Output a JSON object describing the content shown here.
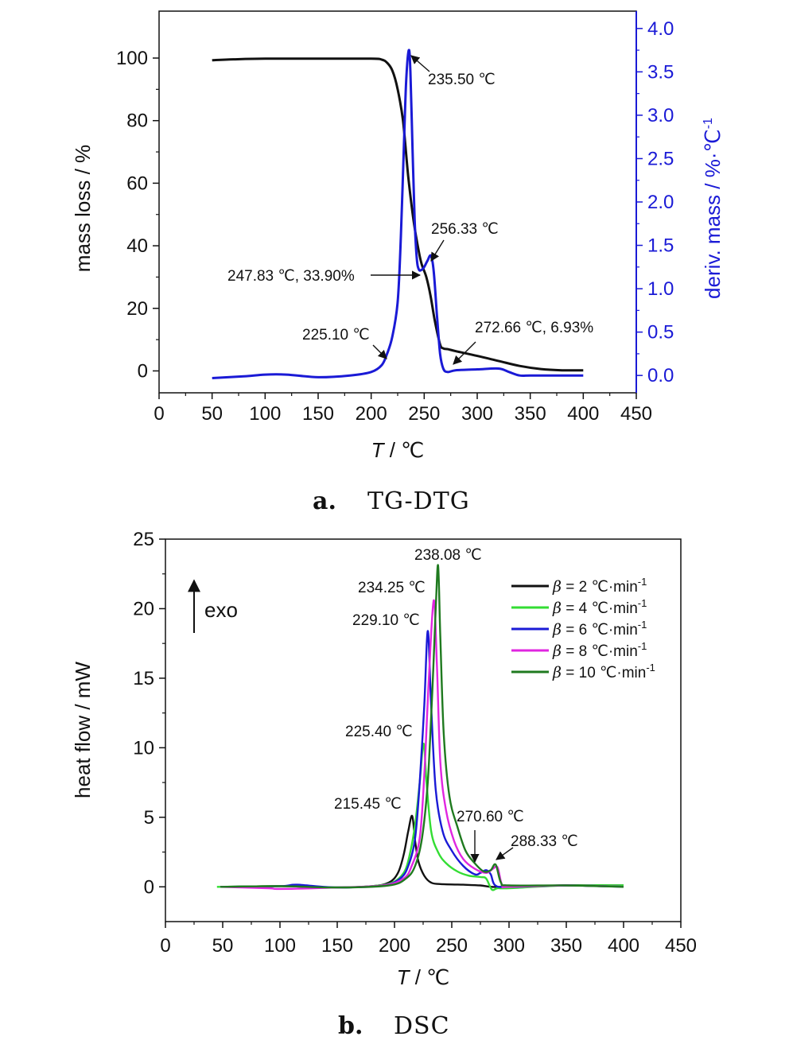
{
  "chart_data": [
    {
      "type": "line",
      "panel_letter": "a.",
      "caption": "TG-DTG",
      "xlabel_italic": "T",
      "xlabel_unit": " / ℃",
      "ylabel": "mass loss / %",
      "y2label": "deriv. mass / %·℃",
      "y2label_sup": "-1",
      "xlim": [
        0,
        450
      ],
      "ylim": [
        -7,
        115
      ],
      "y2lim": [
        -0.2,
        4.2
      ],
      "xticks": [
        "0",
        "50",
        "100",
        "150",
        "200",
        "250",
        "300",
        "350",
        "400",
        "450"
      ],
      "yticks": [
        "0",
        "20",
        "40",
        "60",
        "80",
        "100"
      ],
      "y2ticks": [
        "0.0",
        "0.5",
        "1.0",
        "1.5",
        "2.0",
        "2.5",
        "3.0",
        "3.5",
        "4.0"
      ],
      "y2_axis_color": "#1a1ad6",
      "series": [
        {
          "axis": "left",
          "color": "#111111",
          "x": [
            50,
            70,
            100,
            150,
            200,
            210,
            215,
            220,
            225,
            230,
            235,
            240,
            245,
            247.83,
            252,
            256,
            260,
            265,
            268,
            272.66,
            280,
            300,
            320,
            340,
            360,
            380,
            400
          ],
          "y": [
            99.3,
            99.6,
            99.8,
            99.8,
            99.8,
            99.5,
            98.5,
            96,
            90,
            80,
            62,
            48,
            38,
            33.9,
            30,
            24,
            16,
            8.5,
            7.2,
            6.93,
            6.3,
            4.8,
            3.2,
            1.6,
            0.6,
            0.2,
            0.2
          ]
        },
        {
          "axis": "right",
          "color": "#1a1ad6",
          "x": [
            50,
            80,
            100,
            120,
            150,
            180,
            200,
            210,
            215,
            220,
            225,
            228,
            231,
            233,
            235.5,
            237,
            239,
            241,
            243,
            245,
            247.83,
            250,
            253,
            256.33,
            259,
            262,
            265,
            268,
            272,
            280,
            300,
            320,
            330,
            340,
            350,
            370,
            400
          ],
          "y": [
            -0.03,
            -0.01,
            0.01,
            0.01,
            -0.02,
            0.0,
            0.04,
            0.12,
            0.25,
            0.45,
            0.85,
            1.6,
            2.7,
            3.4,
            3.75,
            3.5,
            2.6,
            1.8,
            1.35,
            1.22,
            1.22,
            1.25,
            1.32,
            1.38,
            1.2,
            0.7,
            0.25,
            0.08,
            0.04,
            0.06,
            0.07,
            0.08,
            0.04,
            0.0,
            0.0,
            0.0,
            0.0
          ]
        }
      ],
      "annotations": [
        {
          "text": "235.50 ℃"
        },
        {
          "text": "256.33 ℃"
        },
        {
          "text": "247.83 ℃, 33.90%"
        },
        {
          "text": "225.10 ℃"
        },
        {
          "text": "272.66 ℃, 6.93%"
        }
      ]
    },
    {
      "type": "line",
      "panel_letter": "b.",
      "caption": "DSC",
      "xlabel_italic": "T",
      "xlabel_unit": " / ℃",
      "ylabel": "heat flow / mW",
      "xlim": [
        0,
        450
      ],
      "ylim": [
        -2.5,
        25
      ],
      "xticks": [
        "0",
        "50",
        "100",
        "150",
        "200",
        "250",
        "300",
        "350",
        "400",
        "450"
      ],
      "yticks": [
        "0",
        "5",
        "10",
        "15",
        "20",
        "25"
      ],
      "exo_label": "exo",
      "legend_position": "top-right",
      "series": [
        {
          "name": "β = 2 ℃·min-1",
          "legend_prefix": "β",
          "legend_rest": " = 2 ℃·min",
          "legend_sup": "-1",
          "color": "#111111",
          "x": [
            48,
            100,
            150,
            180,
            195,
            203,
            208,
            212,
            215.45,
            218,
            221,
            226,
            232,
            240,
            260,
            275,
            285,
            300,
            350,
            400
          ],
          "y": [
            0,
            0.05,
            -0.05,
            0.05,
            0.3,
            1.0,
            2.3,
            4.0,
            5.1,
            3.3,
            1.8,
            0.8,
            0.3,
            0.2,
            0.15,
            0.1,
            0.0,
            0.0,
            0.1,
            0.1
          ]
        },
        {
          "name": "β = 4 ℃·min-1",
          "legend_prefix": "β",
          "legend_rest": " = 4 ℃·min",
          "legend_sup": "-1",
          "color": "#33dd33",
          "x": [
            45,
            100,
            150,
            180,
            198,
            208,
            213,
            218,
            222,
            225.4,
            228,
            232,
            238,
            245,
            255,
            265,
            275,
            280,
            285,
            290,
            300,
            350,
            400
          ],
          "y": [
            0,
            0.05,
            -0.05,
            0.05,
            0.3,
            1.0,
            2.2,
            4.5,
            7.5,
            10.3,
            7.5,
            4.0,
            2.5,
            1.7,
            1.1,
            0.8,
            0.7,
            0.6,
            -0.2,
            -0.1,
            -0.1,
            0.1,
            0.1
          ]
        },
        {
          "name": "β = 6 ℃·min-1",
          "legend_prefix": "β",
          "legend_rest": " = 6 ℃·min",
          "legend_sup": "-1",
          "color": "#1a1ad6",
          "x": [
            48,
            100,
            115,
            150,
            190,
            205,
            212,
            218,
            222,
            226,
            229.1,
            232,
            236,
            242,
            250,
            260,
            270,
            275,
            280,
            284,
            288,
            300,
            350,
            400
          ],
          "y": [
            0,
            0.05,
            0.15,
            -0.05,
            0.1,
            0.6,
            1.5,
            3.5,
            7.5,
            13,
            18.4,
            13,
            7.0,
            4.0,
            2.6,
            1.5,
            0.9,
            1.0,
            1.2,
            0.9,
            0.1,
            0.0,
            0.1,
            0.0
          ]
        },
        {
          "name": "β = 8 ℃·min-1",
          "legend_prefix": "β",
          "legend_rest": " = 8 ℃·min",
          "legend_sup": "-1",
          "color": "#e026e0",
          "x": [
            48,
            90,
            100,
            150,
            190,
            208,
            215,
            222,
            226,
            230,
            234.25,
            237,
            240,
            245,
            252,
            260,
            270,
            280,
            286,
            290,
            294,
            300,
            350,
            400
          ],
          "y": [
            0,
            -0.1,
            -0.15,
            -0.05,
            0.1,
            0.6,
            1.5,
            3.5,
            8.0,
            15,
            20.6,
            16,
            9.0,
            5.5,
            3.3,
            2.0,
            1.3,
            1.0,
            1.3,
            1.4,
            0.1,
            0.0,
            0.1,
            0.0
          ]
        },
        {
          "name": "β = 10 ℃·min-1",
          "legend_prefix": "β",
          "legend_rest": " = 10 ℃·min",
          "legend_sup": "-1",
          "color": "#1f7a1f",
          "x": [
            48,
            100,
            150,
            195,
            210,
            218,
            224,
            229,
            233,
            236,
            238.08,
            240,
            243,
            248,
            255,
            262,
            270,
            278,
            284,
            288.33,
            293,
            300,
            350,
            400
          ],
          "y": [
            0,
            0.05,
            -0.05,
            0.1,
            0.6,
            1.5,
            3.5,
            7.5,
            14,
            20,
            23.1,
            18,
            11,
            6.5,
            4.3,
            2.6,
            1.7,
            1.1,
            1.2,
            1.6,
            0.3,
            0.1,
            0.1,
            0.0
          ]
        }
      ],
      "annotations": [
        {
          "text": "238.08 ℃"
        },
        {
          "text": "234.25 ℃"
        },
        {
          "text": "229.10 ℃"
        },
        {
          "text": "225.40 ℃"
        },
        {
          "text": "215.45 ℃"
        },
        {
          "text": "270.60 ℃"
        },
        {
          "text": "288.33 ℃"
        }
      ]
    }
  ]
}
